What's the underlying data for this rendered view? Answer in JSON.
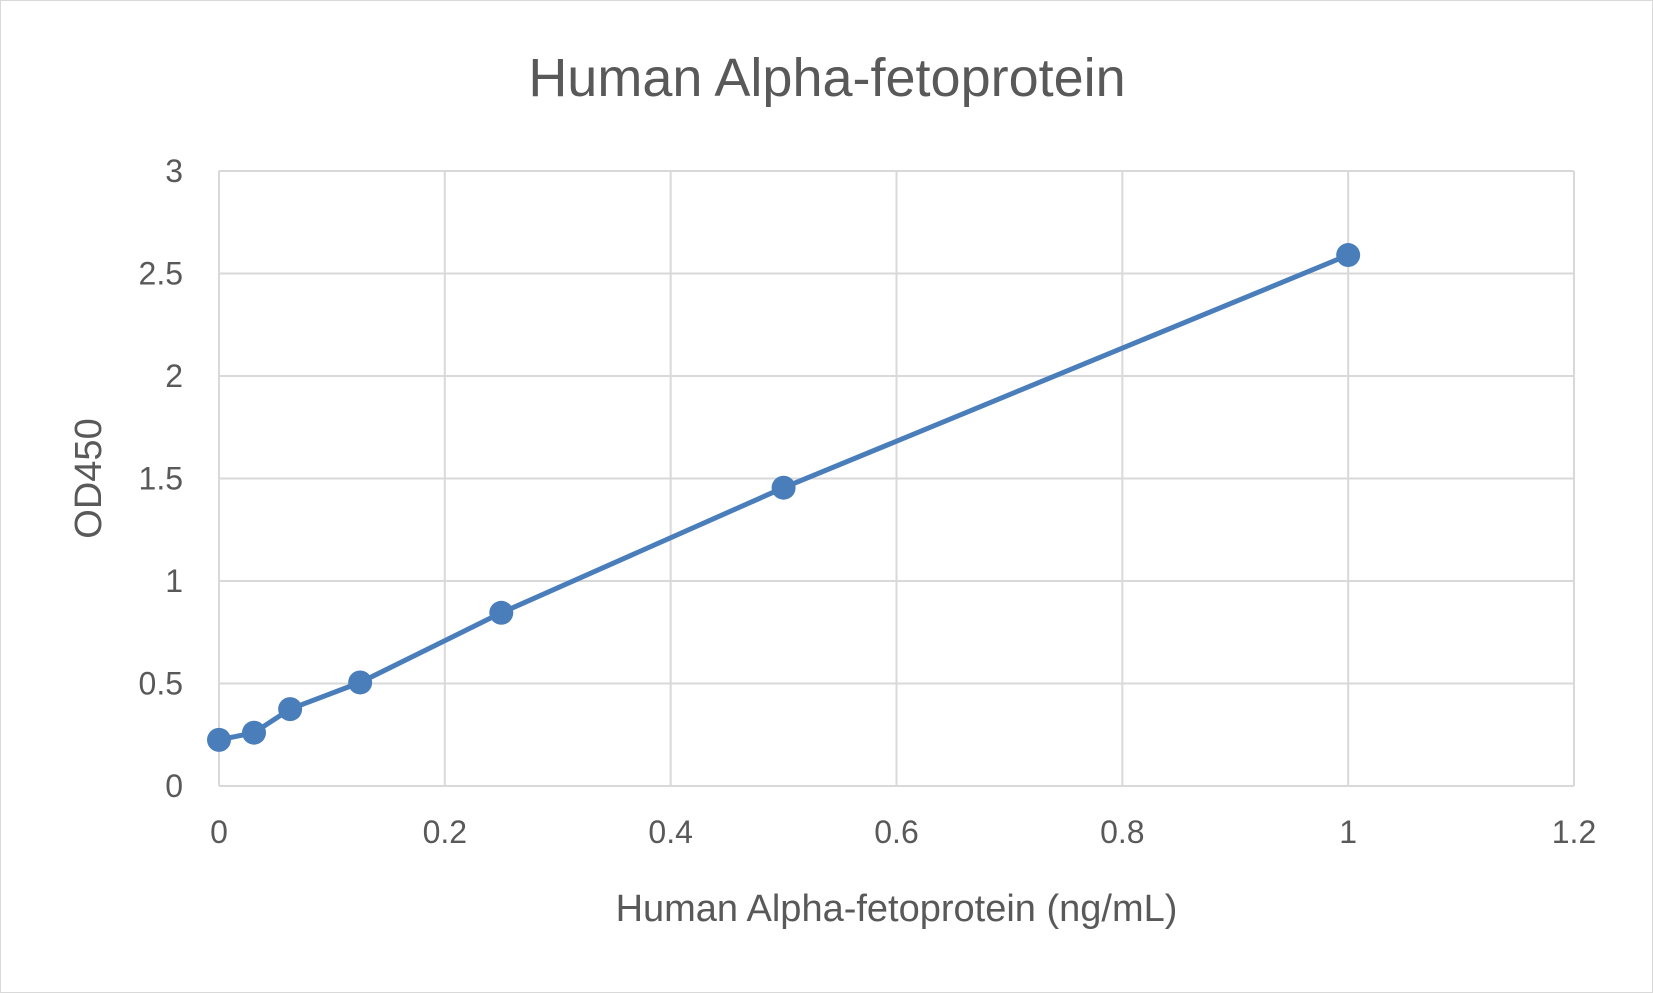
{
  "chart_data": {
    "type": "scatter",
    "title": "Human Alpha-fetoprotein",
    "xlabel": "Human Alpha-fetoprotein (ng/mL)",
    "ylabel": "OD450",
    "xlim": [
      0,
      1.2
    ],
    "ylim": [
      0,
      3
    ],
    "x_ticks": [
      "0",
      "0.2",
      "0.4",
      "0.6",
      "0.8",
      "1",
      "1.2"
    ],
    "y_ticks": [
      "0",
      "0.5",
      "1",
      "1.5",
      "2",
      "2.5",
      "3"
    ],
    "grid": true,
    "legend": "none",
    "lines_connected": true,
    "series": [
      {
        "color": "#4a7ebb",
        "x": [
          0,
          0.031,
          0.063,
          0.125,
          0.25,
          0.5,
          1.0
        ],
        "y": [
          0.225,
          0.26,
          0.375,
          0.505,
          0.845,
          1.455,
          2.59
        ]
      }
    ],
    "colors": {
      "grid": "#d9d9d9",
      "text": "#595959",
      "series": "#4a7ebb"
    }
  }
}
